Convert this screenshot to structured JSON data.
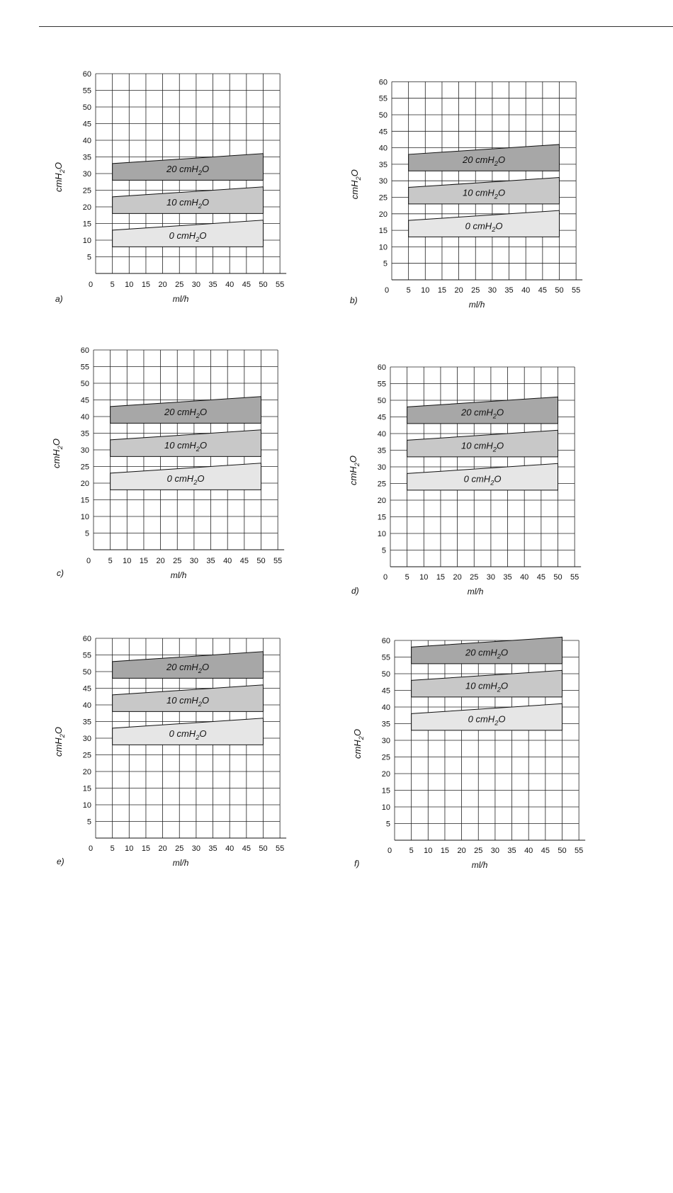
{
  "chart_data": [
    {
      "type": "area",
      "panel_label": "a)",
      "xlabel": "ml/h",
      "ylabel": "cmH2O",
      "xlim": [
        0,
        55
      ],
      "ylim": [
        0,
        60
      ],
      "x_ticks": [
        0,
        5,
        10,
        15,
        20,
        25,
        30,
        35,
        40,
        45,
        50,
        55
      ],
      "y_ticks": [
        5,
        10,
        15,
        20,
        25,
        30,
        35,
        40,
        45,
        50,
        55,
        60
      ],
      "grid": true,
      "series": [
        {
          "name": "0 cmH2O",
          "color": "#e6e6e6",
          "x": [
            5,
            50
          ],
          "lower": [
            8,
            8
          ],
          "upper": [
            13,
            16
          ]
        },
        {
          "name": "10 cmH2O",
          "color": "#c8c8c8",
          "x": [
            5,
            50
          ],
          "lower": [
            18,
            18
          ],
          "upper": [
            23,
            26
          ]
        },
        {
          "name": "20 cmH2O",
          "color": "#a7a7a7",
          "x": [
            5,
            50
          ],
          "lower": [
            28,
            28
          ],
          "upper": [
            33,
            36
          ]
        }
      ]
    },
    {
      "type": "area",
      "panel_label": "b)",
      "xlabel": "ml/h",
      "ylabel": "cmH2O",
      "xlim": [
        0,
        55
      ],
      "ylim": [
        0,
        60
      ],
      "x_ticks": [
        0,
        5,
        10,
        15,
        20,
        25,
        30,
        35,
        40,
        45,
        50,
        55
      ],
      "y_ticks": [
        5,
        10,
        15,
        20,
        25,
        30,
        35,
        40,
        45,
        50,
        55,
        60
      ],
      "grid": true,
      "series": [
        {
          "name": "0 cmH2O",
          "color": "#e6e6e6",
          "x": [
            5,
            50
          ],
          "lower": [
            13,
            13
          ],
          "upper": [
            18,
            21
          ]
        },
        {
          "name": "10 cmH2O",
          "color": "#c8c8c8",
          "x": [
            5,
            50
          ],
          "lower": [
            23,
            23
          ],
          "upper": [
            28,
            31
          ]
        },
        {
          "name": "20 cmH2O",
          "color": "#a7a7a7",
          "x": [
            5,
            50
          ],
          "lower": [
            33,
            33
          ],
          "upper": [
            38,
            41
          ]
        }
      ]
    },
    {
      "type": "area",
      "panel_label": "c)",
      "xlabel": "ml/h",
      "ylabel": "cmH2O",
      "xlim": [
        0,
        55
      ],
      "ylim": [
        0,
        60
      ],
      "x_ticks": [
        0,
        5,
        10,
        15,
        20,
        25,
        30,
        35,
        40,
        45,
        50,
        55
      ],
      "y_ticks": [
        5,
        10,
        15,
        20,
        25,
        30,
        35,
        40,
        45,
        50,
        55,
        60
      ],
      "grid": true,
      "series": [
        {
          "name": "0 cmH2O",
          "color": "#e6e6e6",
          "x": [
            5,
            50
          ],
          "lower": [
            18,
            18
          ],
          "upper": [
            23,
            26
          ]
        },
        {
          "name": "10 cmH2O",
          "color": "#c8c8c8",
          "x": [
            5,
            50
          ],
          "lower": [
            28,
            28
          ],
          "upper": [
            33,
            36
          ]
        },
        {
          "name": "20 cmH2O",
          "color": "#a7a7a7",
          "x": [
            5,
            50
          ],
          "lower": [
            38,
            38
          ],
          "upper": [
            43,
            46
          ]
        }
      ]
    },
    {
      "type": "area",
      "panel_label": "d)",
      "xlabel": "ml/h",
      "ylabel": "cmH2O",
      "xlim": [
        0,
        55
      ],
      "ylim": [
        0,
        60
      ],
      "x_ticks": [
        0,
        5,
        10,
        15,
        20,
        25,
        30,
        35,
        40,
        45,
        50,
        55
      ],
      "y_ticks": [
        5,
        10,
        15,
        20,
        25,
        30,
        35,
        40,
        45,
        50,
        55,
        60
      ],
      "grid": true,
      "series": [
        {
          "name": "0 cmH2O",
          "color": "#e6e6e6",
          "x": [
            5,
            50
          ],
          "lower": [
            23,
            23
          ],
          "upper": [
            28,
            31
          ]
        },
        {
          "name": "10 cmH2O",
          "color": "#c8c8c8",
          "x": [
            5,
            50
          ],
          "lower": [
            33,
            33
          ],
          "upper": [
            38,
            41
          ]
        },
        {
          "name": "20 cmH2O",
          "color": "#a7a7a7",
          "x": [
            5,
            50
          ],
          "lower": [
            43,
            43
          ],
          "upper": [
            48,
            51
          ]
        }
      ]
    },
    {
      "type": "area",
      "panel_label": "e)",
      "xlabel": "ml/h",
      "ylabel": "cmH2O",
      "xlim": [
        0,
        55
      ],
      "ylim": [
        0,
        60
      ],
      "x_ticks": [
        0,
        5,
        10,
        15,
        20,
        25,
        30,
        35,
        40,
        45,
        50,
        55
      ],
      "y_ticks": [
        5,
        10,
        15,
        20,
        25,
        30,
        35,
        40,
        45,
        50,
        55,
        60
      ],
      "grid": true,
      "series": [
        {
          "name": "0 cmH2O",
          "color": "#e6e6e6",
          "x": [
            5,
            50
          ],
          "lower": [
            28,
            28
          ],
          "upper": [
            33,
            36
          ]
        },
        {
          "name": "10 cmH2O",
          "color": "#c8c8c8",
          "x": [
            5,
            50
          ],
          "lower": [
            38,
            38
          ],
          "upper": [
            43,
            46
          ]
        },
        {
          "name": "20 cmH2O",
          "color": "#a7a7a7",
          "x": [
            5,
            50
          ],
          "lower": [
            48,
            48
          ],
          "upper": [
            53,
            56
          ]
        }
      ]
    },
    {
      "type": "area",
      "panel_label": "f)",
      "xlabel": "ml/h",
      "ylabel": "cmH2O",
      "xlim": [
        0,
        55
      ],
      "ylim": [
        0,
        60
      ],
      "x_ticks": [
        0,
        5,
        10,
        15,
        20,
        25,
        30,
        35,
        40,
        45,
        50,
        55
      ],
      "y_ticks": [
        5,
        10,
        15,
        20,
        25,
        30,
        35,
        40,
        45,
        50,
        55,
        60
      ],
      "grid": true,
      "series": [
        {
          "name": "0 cmH2O",
          "color": "#e6e6e6",
          "x": [
            5,
            50
          ],
          "lower": [
            33,
            33
          ],
          "upper": [
            38,
            41
          ]
        },
        {
          "name": "10 cmH2O",
          "color": "#c8c8c8",
          "x": [
            5,
            50
          ],
          "lower": [
            43,
            43
          ],
          "upper": [
            48,
            51
          ]
        },
        {
          "name": "20 cmH2O",
          "color": "#a7a7a7",
          "x": [
            5,
            50
          ],
          "lower": [
            53,
            53
          ],
          "upper": [
            58,
            61
          ]
        }
      ]
    }
  ]
}
